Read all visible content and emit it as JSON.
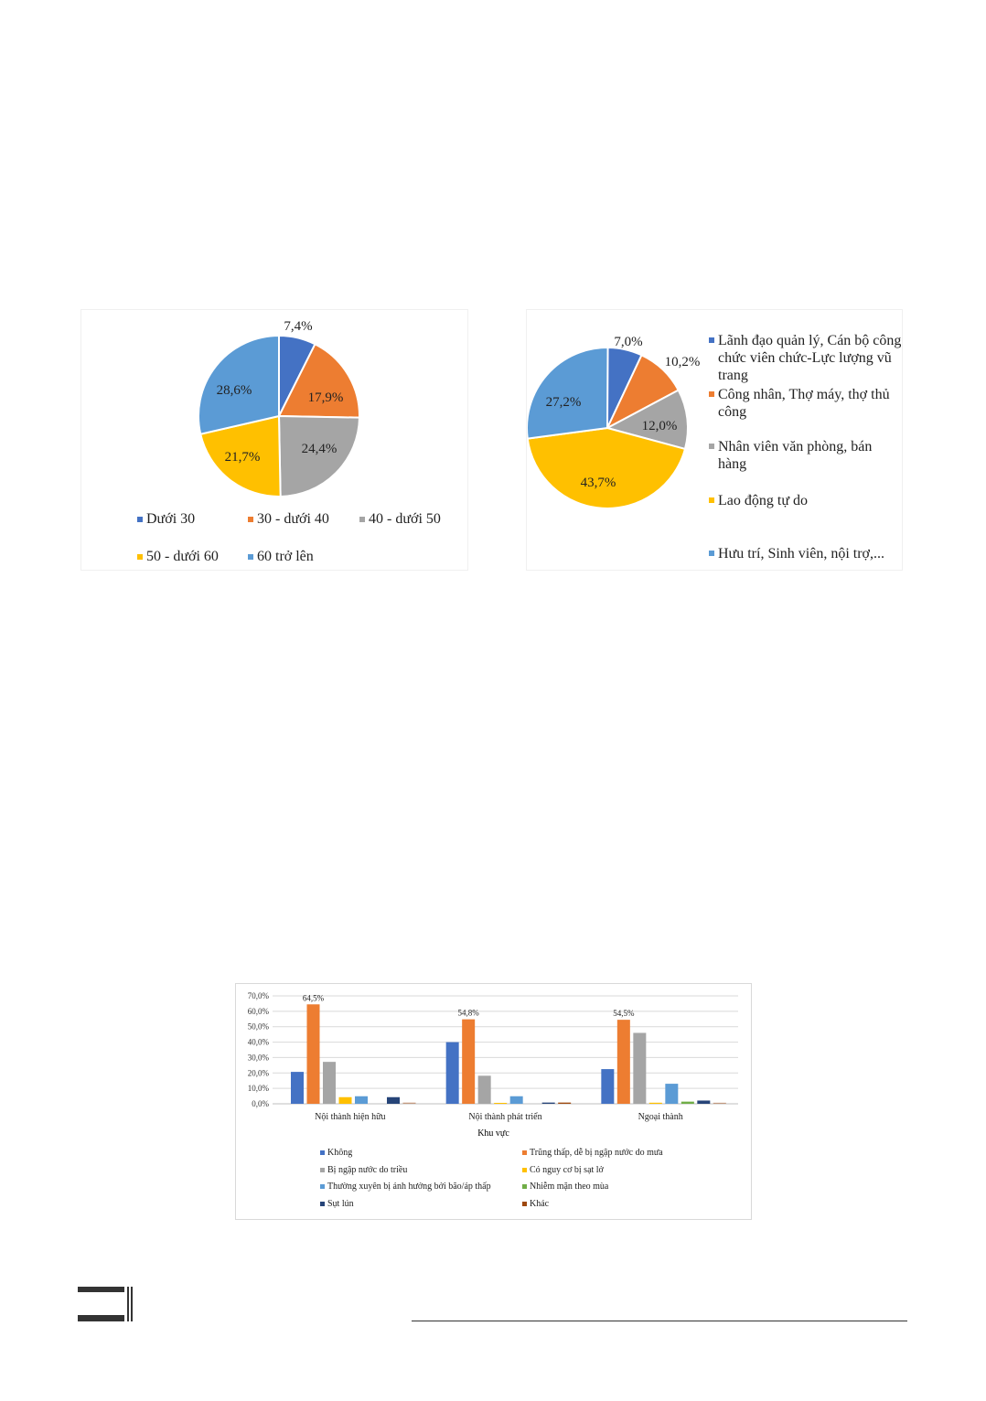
{
  "chart_data": [
    {
      "type": "pie",
      "title": "",
      "categories": [
        "Dưới 30",
        "30 - dưới 40",
        "40 - dưới 50",
        "50 - dưới 60",
        "60 trở lên"
      ],
      "values": [
        7.4,
        17.9,
        24.4,
        21.7,
        28.6
      ],
      "labels": [
        "7,4%",
        "17,9%",
        "24,4%",
        "21,7%",
        "28,6%"
      ],
      "colors": [
        "#4472c4",
        "#ed7d31",
        "#a5a5a5",
        "#ffc000",
        "#5b9bd5"
      ],
      "legend": "bottom"
    },
    {
      "type": "pie",
      "title": "",
      "categories": [
        "Lãnh đạo quản lý, Cán bộ công chức viên chức-Lực lượng vũ trang",
        "Công nhân, Thợ máy, thợ thủ công",
        "Nhân viên văn phòng, bán hàng",
        "Lao động tự do",
        "Hưu trí, Sinh viên, nội trợ,..."
      ],
      "values": [
        7.0,
        10.2,
        12.0,
        43.7,
        27.2
      ],
      "labels": [
        "7,0%",
        "10,2%",
        "12,0%",
        "43,7%",
        "27,2%"
      ],
      "colors": [
        "#4472c4",
        "#ed7d31",
        "#a5a5a5",
        "#ffc000",
        "#5b9bd5"
      ],
      "legend": "right"
    },
    {
      "type": "bar",
      "xlabel": "Khu vực",
      "ylabel": "",
      "ylim": [
        0,
        70
      ],
      "yticks": [
        "0,0%",
        "10,0%",
        "20,0%",
        "30,0%",
        "40,0%",
        "50,0%",
        "60,0%",
        "70,0%"
      ],
      "categories": [
        "Nội thành hiện hữu",
        "Nội thành phát triển",
        "Ngoại thành"
      ],
      "series": [
        {
          "name": "Không",
          "color": "#4472c4",
          "values": [
            20.7,
            40.0,
            22.5
          ]
        },
        {
          "name": "Trũng thấp, dễ bị ngập nước do mưa",
          "color": "#ed7d31",
          "values": [
            64.5,
            54.8,
            54.5
          ]
        },
        {
          "name": "Bị ngập nước do triều",
          "color": "#a5a5a5",
          "values": [
            27.2,
            18.2,
            46.0
          ]
        },
        {
          "name": "Có nguy cơ bị sạt lở",
          "color": "#ffc000",
          "values": [
            4.3,
            0.6,
            0.7
          ]
        },
        {
          "name": "Thường xuyên bị ảnh hưởng bởi bão/áp thấp",
          "color": "#5b9bd5",
          "values": [
            4.9,
            4.9,
            13.0
          ]
        },
        {
          "name": "Nhiễm mặn theo mùa",
          "color": "#70ad47",
          "values": [
            0,
            0,
            1.4
          ]
        },
        {
          "name": "Sụt lún",
          "color": "#264478",
          "values": [
            4.3,
            0.8,
            2.1
          ]
        },
        {
          "name": "Khác",
          "color": "#9e480e",
          "values": [
            0.8,
            0.8,
            0.7
          ]
        }
      ],
      "data_labels": [
        "64,5%",
        "54,8%",
        "54,5%"
      ],
      "legend": "bottom"
    }
  ]
}
